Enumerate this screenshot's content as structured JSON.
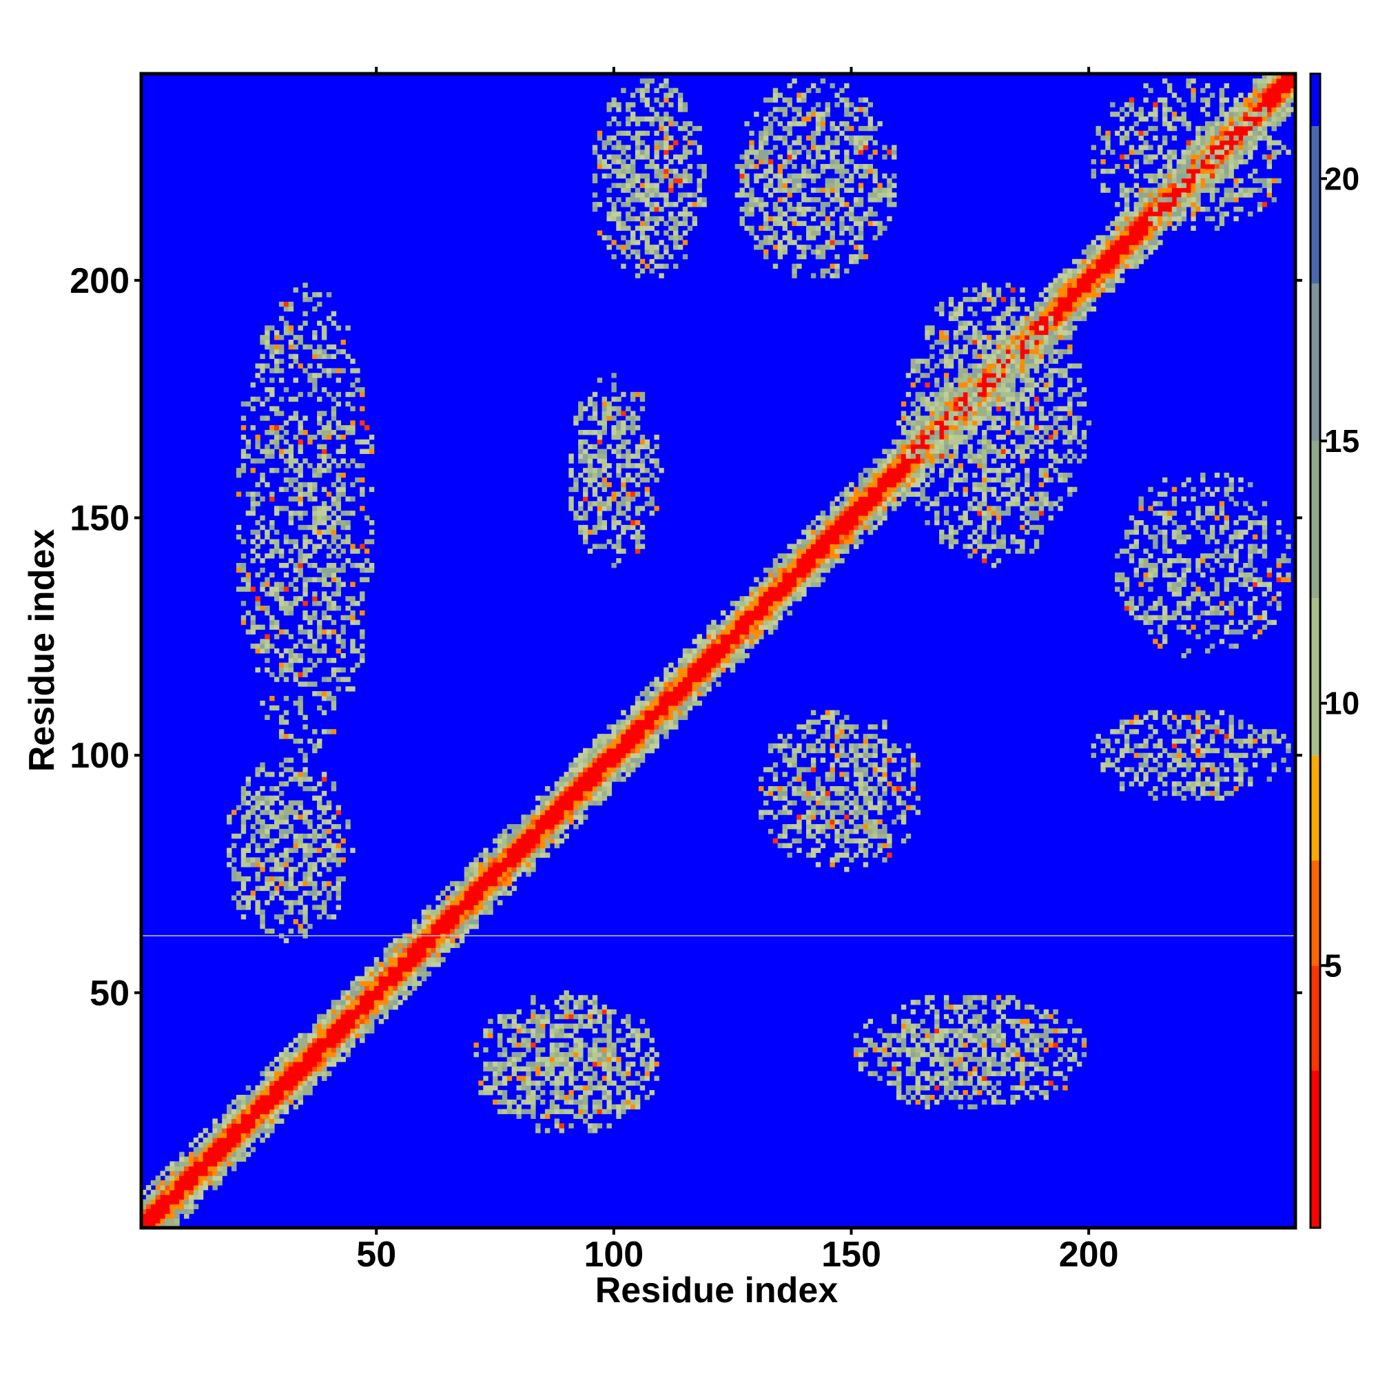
{
  "chart_data": {
    "type": "heatmap",
    "title": "",
    "xlabel": "Residue index",
    "ylabel": "Residue index",
    "xlim": [
      1,
      243
    ],
    "ylim": [
      1,
      243
    ],
    "x_ticks": [
      50,
      100,
      150,
      200
    ],
    "y_ticks": [
      50,
      100,
      150,
      200
    ],
    "x_tick_labels": [
      "50",
      "100",
      "150",
      "200"
    ],
    "y_tick_labels": [
      "50",
      "100",
      "150",
      "200"
    ],
    "colorbar": {
      "range": [
        0,
        21
      ],
      "ticks": [
        5,
        10,
        15,
        20
      ],
      "tick_labels": [
        "5",
        "10",
        "15",
        "20"
      ],
      "bands": [
        {
          "from": 0,
          "to": 3,
          "color": "#ff0000"
        },
        {
          "from": 3,
          "to": 5,
          "color": "#ff3300"
        },
        {
          "from": 5,
          "to": 7,
          "color": "#ff6600"
        },
        {
          "from": 7,
          "to": 9,
          "color": "#ffaa00"
        },
        {
          "from": 9,
          "to": 12,
          "color": "#a8bf8c"
        },
        {
          "from": 12,
          "to": 15,
          "color": "#93a98c"
        },
        {
          "from": 15,
          "to": 18,
          "color": "#7f949a"
        },
        {
          "from": 18,
          "to": 21,
          "color": "#4a67b0"
        },
        {
          "from": 21,
          "to": 22,
          "color": "#0000ff"
        }
      ]
    },
    "colors": {
      "background": "#0000ff",
      "diagonal": "#ff0000",
      "near": "#ff8c00",
      "contact": "#a8bf8c",
      "divider": "#c8c8c8"
    },
    "diagonal_contact": {
      "from": 1,
      "to": 243
    },
    "divider_residue": 62,
    "contact_regions": [
      {
        "x": [
          18,
          45
        ],
        "y": [
          60,
          100
        ],
        "level": "medium"
      },
      {
        "x": [
          20,
          50
        ],
        "y": [
          100,
          200
        ],
        "level": "weak"
      },
      {
        "x": [
          70,
          110
        ],
        "y": [
          20,
          50
        ],
        "level": "strong"
      },
      {
        "x": [
          90,
          110
        ],
        "y": [
          140,
          180
        ],
        "level": "medium"
      },
      {
        "x": [
          95,
          120
        ],
        "y": [
          200,
          243
        ],
        "level": "medium"
      },
      {
        "x": [
          125,
          160
        ],
        "y": [
          200,
          243
        ],
        "level": "medium"
      },
      {
        "x": [
          130,
          165
        ],
        "y": [
          75,
          110
        ],
        "level": "medium"
      },
      {
        "x": [
          150,
          200
        ],
        "y": [
          25,
          50
        ],
        "level": "medium"
      },
      {
        "x": [
          160,
          200
        ],
        "y": [
          140,
          200
        ],
        "level": "medium"
      },
      {
        "x": [
          200,
          243
        ],
        "y": [
          90,
          110
        ],
        "level": "weak"
      },
      {
        "x": [
          205,
          243
        ],
        "y": [
          120,
          160
        ],
        "level": "weak"
      },
      {
        "x": [
          200,
          243
        ],
        "y": [
          210,
          243
        ],
        "level": "weak"
      }
    ]
  }
}
